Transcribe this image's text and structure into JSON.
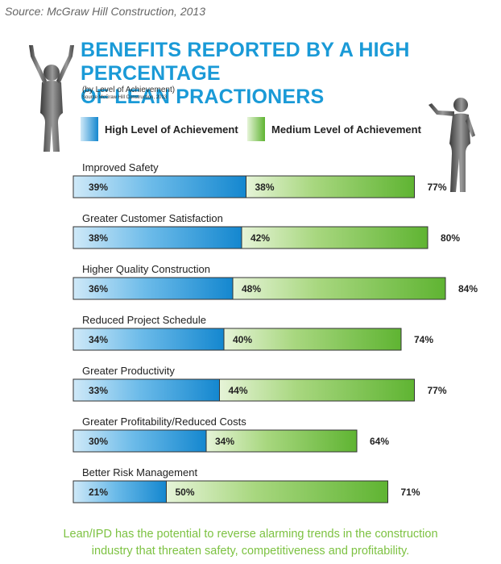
{
  "source_top": "Source: McGraw Hill Construction, 2013",
  "title_line1": "BENEFITS REPORTED BY A HIGH PERCENTAGE",
  "title_line2": "OF LEAN PRACTIONERS",
  "subtitle": "(by Level of Achievement)",
  "subtitle_source": "Source McGraw Hill Construction, 2013",
  "footer_line1": "Lean/IPD has the potential to reverse alarming trends in the construction",
  "footer_line2": "industry that threaten safety, competitiveness and profitability.",
  "colors": {
    "title": "#1a9ad7",
    "high_dark": "#1487cf",
    "high_light": "#cfe9f8",
    "medium_dark": "#5fb432",
    "medium_light": "#e6f4d8",
    "footer": "#7dc242"
  },
  "chart_data": {
    "type": "bar",
    "orientation": "horizontal",
    "stacked": true,
    "categories": [
      "Improved Safety",
      "Greater Customer Satisfaction",
      "Higher Quality Construction",
      "Reduced Project Schedule",
      "Greater Productivity",
      "Greater Profitability/Reduced Costs",
      "Better Risk Management"
    ],
    "series": [
      {
        "name": "High Level of Achievement",
        "values": [
          39,
          38,
          36,
          34,
          33,
          30,
          21
        ]
      },
      {
        "name": "Medium Level of Achievement",
        "values": [
          38,
          42,
          48,
          40,
          44,
          34,
          50
        ]
      }
    ],
    "totals": [
      77,
      80,
      84,
      74,
      77,
      64,
      71
    ],
    "unit": "%",
    "legend": "top"
  }
}
